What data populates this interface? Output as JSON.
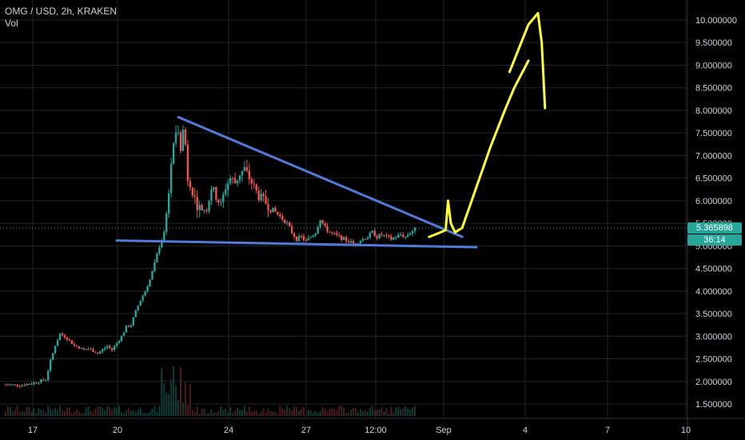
{
  "header": {
    "symbol_line": "OMG / USD, 2h, KRAKEN",
    "indicator": "Vol"
  },
  "price_tag": {
    "last_price": "5.365898",
    "countdown": "36:14"
  },
  "colors": {
    "background": "#000000",
    "up": "#26a69a",
    "down": "#ef5350",
    "trendline": "#4f7bd9",
    "annotation": "#ffff33",
    "grid": "#222426"
  },
  "chart_data": {
    "type": "candlestick",
    "title": "OMG / USD, 2h, KRAKEN",
    "ylim": [
      1.2,
      10.5
    ],
    "yticks": [
      "10.000000",
      "9.500000",
      "9.000000",
      "8.500000",
      "8.000000",
      "7.500000",
      "7.000000",
      "6.500000",
      "6.000000",
      "5.500000",
      "5.000000",
      "4.500000",
      "4.000000",
      "3.500000",
      "3.000000",
      "2.500000",
      "2.000000",
      "1.500000"
    ],
    "ytick_values": [
      10.0,
      9.5,
      9.0,
      8.5,
      8.0,
      7.5,
      7.0,
      6.5,
      6.0,
      5.5,
      5.0,
      4.5,
      4.0,
      3.5,
      3.0,
      2.5,
      2.0,
      1.5
    ],
    "xticks": [
      "17",
      "20",
      "24",
      "27",
      "12:00",
      "Sep",
      "4",
      "7",
      "10"
    ],
    "last_price": 5.365898,
    "price_path": [
      [
        0,
        1.93
      ],
      [
        4,
        1.92
      ],
      [
        7,
        1.98
      ],
      [
        9,
        2.05
      ],
      [
        10,
        2.45
      ],
      [
        11,
        2.8
      ],
      [
        12,
        3.05
      ],
      [
        13,
        3.0
      ],
      [
        14,
        2.9
      ],
      [
        15,
        2.8
      ],
      [
        16,
        2.75
      ],
      [
        17,
        2.7
      ],
      [
        18,
        2.72
      ],
      [
        19,
        2.68
      ],
      [
        20,
        2.62
      ],
      [
        21,
        2.7
      ],
      [
        22,
        2.78
      ],
      [
        23,
        2.7
      ],
      [
        24,
        2.85
      ],
      [
        25,
        3.0
      ],
      [
        26,
        3.2
      ],
      [
        27,
        3.25
      ],
      [
        28,
        3.55
      ],
      [
        29,
        3.8
      ],
      [
        30,
        4.0
      ],
      [
        31,
        4.25
      ],
      [
        32,
        4.6
      ],
      [
        33,
        5.0
      ],
      [
        34,
        5.3
      ],
      [
        35,
        6.2
      ],
      [
        36,
        7.3
      ],
      [
        37,
        7.6
      ],
      [
        37.5,
        7.2
      ],
      [
        38,
        7.55
      ],
      [
        38.5,
        7.25
      ],
      [
        39,
        6.5
      ],
      [
        39.5,
        6.4
      ],
      [
        40,
        6.2
      ],
      [
        41,
        5.9
      ],
      [
        42,
        5.8
      ],
      [
        43,
        5.8
      ],
      [
        44,
        6.3
      ],
      [
        45,
        6.1
      ],
      [
        46,
        5.9
      ],
      [
        47,
        6.3
      ],
      [
        48,
        6.5
      ],
      [
        49,
        6.4
      ],
      [
        50,
        6.6
      ],
      [
        51,
        6.7
      ],
      [
        52,
        6.5
      ],
      [
        53,
        6.3
      ],
      [
        54,
        6.1
      ],
      [
        55,
        6.0
      ],
      [
        56,
        5.9
      ],
      [
        57,
        5.8
      ],
      [
        58,
        5.7
      ],
      [
        59,
        5.6
      ],
      [
        60,
        5.5
      ],
      [
        61,
        5.3
      ],
      [
        62,
        5.15
      ],
      [
        63,
        5.2
      ],
      [
        64,
        5.1
      ],
      [
        65,
        5.2
      ],
      [
        66,
        5.3
      ],
      [
        67,
        5.6
      ],
      [
        68,
        5.4
      ],
      [
        69,
        5.3
      ],
      [
        70,
        5.25
      ],
      [
        71,
        5.2
      ],
      [
        72,
        5.15
      ],
      [
        73,
        5.1
      ],
      [
        74,
        5.05
      ],
      [
        75,
        5.1
      ],
      [
        76,
        5.15
      ],
      [
        77,
        5.2
      ],
      [
        78,
        5.3
      ],
      [
        79,
        5.2
      ],
      [
        80,
        5.25
      ],
      [
        81,
        5.2
      ],
      [
        82,
        5.15
      ],
      [
        83,
        5.2
      ],
      [
        84,
        5.25
      ],
      [
        85,
        5.2
      ],
      [
        86,
        5.3
      ],
      [
        87,
        5.37
      ]
    ],
    "trendlines": {
      "upper": {
        "from": [
          37,
          7.85
        ],
        "to": [
          97,
          5.2
        ]
      },
      "lower": {
        "from": [
          24,
          5.12
        ],
        "to": [
          100,
          4.97
        ]
      }
    },
    "annotation_arrow": {
      "path": [
        [
          90,
          5.2
        ],
        [
          92,
          5.28
        ],
        [
          93.5,
          5.35
        ],
        [
          94,
          6.0
        ],
        [
          94.6,
          5.5
        ],
        [
          95.5,
          5.3
        ],
        [
          97,
          5.4
        ],
        [
          100,
          6.3
        ],
        [
          103,
          7.2
        ],
        [
          106,
          8.0
        ],
        [
          108,
          8.5
        ],
        [
          111,
          9.1
        ]
      ],
      "head": [
        [
          107,
          8.85
        ],
        [
          111,
          9.9
        ],
        [
          113,
          10.15
        ],
        [
          113.8,
          9.5
        ],
        [
          114.5,
          8.05
        ]
      ]
    }
  }
}
